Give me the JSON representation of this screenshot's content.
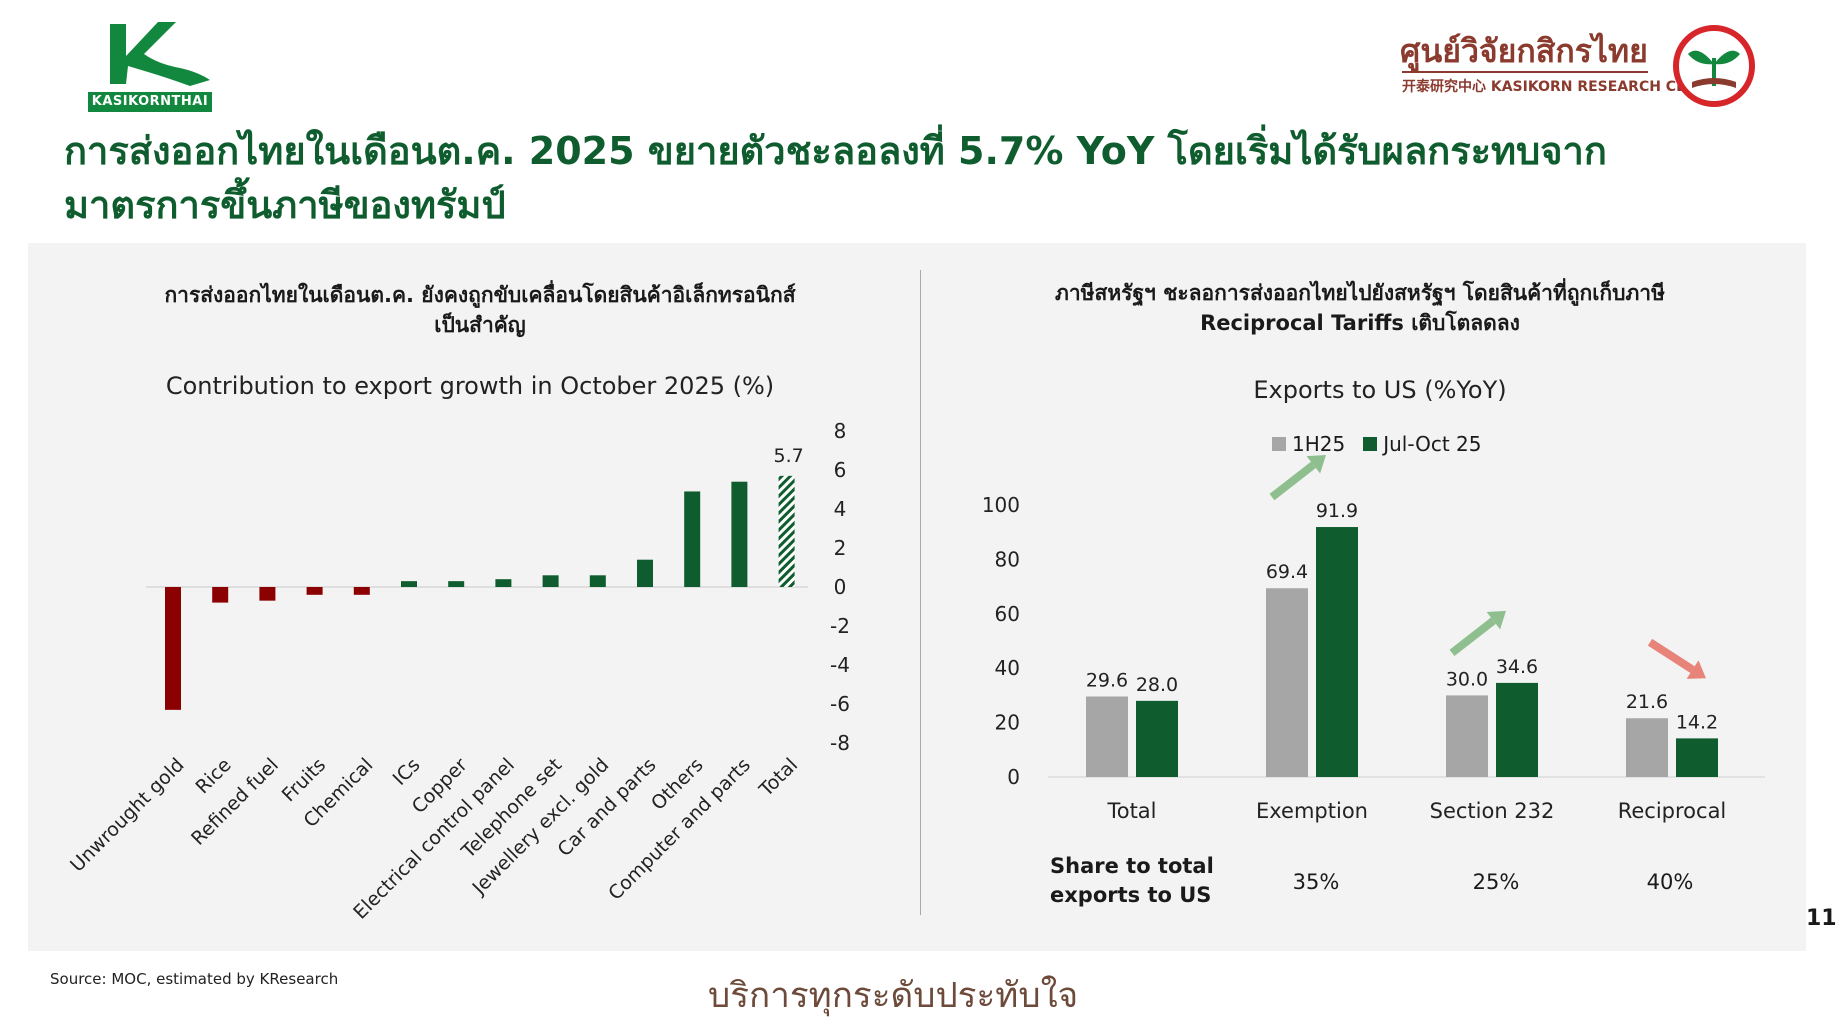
{
  "brand": {
    "left_logo_text": "KASIKORNTHAI",
    "right_logo_thai": "ศูนย์วิจัยกสิกรไทย",
    "right_logo_en": "开泰研究中心 KASIKORN RESEARCH CENTER",
    "green": "#0f5d2f",
    "red": "#8b0000"
  },
  "title": "การส่งออกไทยในเดือนต.ค. 2025 ขยายตัวชะลอลงที่ 5.7% YoY โดยเริ่มได้รับผลกระทบจากมาตรการขึ้นภาษีของทรัมป์",
  "left_panel": {
    "subtitle_line1": "การส่งออกไทยในเดือนต.ค. ยังคงถูกขับเคลื่อนโดยสินค้าอิเล็กทรอนิกส์",
    "subtitle_line2": "เป็นสำคัญ"
  },
  "right_panel": {
    "subtitle_line1": "ภาษีสหรัฐฯ ชะลอการส่งออกไทยไปยังสหรัฐฯ โดยสินค้าที่ถูกเก็บภาษี",
    "subtitle_line2": "Reciprocal Tariffs เติบโตลดลง",
    "share_label_1": "Share to total",
    "share_label_2": "exports to US",
    "shares": [
      "35%",
      "25%",
      "40%"
    ]
  },
  "chart_data": [
    {
      "type": "bar",
      "title": "Contribution to export growth in October 2025 (%)",
      "categories": [
        "Unwrought gold",
        "Rice",
        "Refined fuel",
        "Fruits",
        "Chemical",
        "ICs",
        "Copper",
        "Electrical control panel",
        "Telephone set",
        "Jewellery excl. gold",
        "Car and parts",
        "Others",
        "Computer and parts",
        "Total"
      ],
      "values": [
        -6.3,
        -0.8,
        -0.7,
        -0.4,
        -0.4,
        0.3,
        0.3,
        0.4,
        0.6,
        0.6,
        1.4,
        4.9,
        5.4,
        5.7
      ],
      "data_labels": {
        "Total": "5.7"
      },
      "ylim": [
        -8,
        8
      ],
      "yticks": [
        8,
        6,
        4,
        2,
        0,
        -2,
        -4,
        -6,
        -8
      ],
      "y_axis_side": "right",
      "colors": {
        "negative": "#8b0000",
        "positive": "#0f5d2f",
        "total": "hatched green"
      }
    },
    {
      "type": "bar",
      "title": "Exports to US (%YoY)",
      "categories": [
        "Total",
        "Exemption",
        "Section 232",
        "Reciprocal"
      ],
      "series": [
        {
          "name": "1H25",
          "values": [
            29.6,
            69.4,
            30.0,
            21.6
          ],
          "labels": [
            "29.6",
            "69.4",
            "30.0",
            "21.6"
          ],
          "color": "#a6a6a6"
        },
        {
          "name": "Jul-Oct 25",
          "values": [
            28.0,
            91.9,
            34.6,
            14.2
          ],
          "labels": [
            "28.0",
            "91.9",
            "34.6",
            "14.2"
          ],
          "color": "#0f5d2f"
        }
      ],
      "ylim": [
        0,
        100
      ],
      "yticks": [
        0,
        20,
        40,
        60,
        80,
        100
      ],
      "legend": "top-center",
      "trend_arrows": {
        "Exemption": "up",
        "Section 232": "up",
        "Reciprocal": "down"
      }
    }
  ],
  "footer": {
    "source": "Source: MOC, estimated by KResearch",
    "slogan": "บริการทุกระดับประทับใจ",
    "page_number": "11"
  }
}
